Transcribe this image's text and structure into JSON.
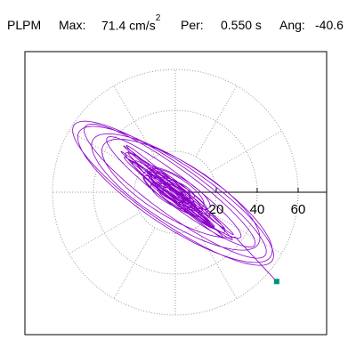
{
  "header": {
    "station": "PLPM",
    "max_label": "Max:",
    "max_value": "71.4 cm/s",
    "max_exp": "2",
    "period_label": "Per:",
    "period_value": "0.550 s",
    "angle_label": "Ang:",
    "angle_value": "-40.6"
  },
  "chart_data": {
    "type": "line",
    "title": "",
    "xlabel": "",
    "ylabel": "",
    "units": "cm/s2",
    "max": 71.4,
    "period_s": 0.55,
    "angle_deg": -40.6,
    "tick_labels": [
      "20",
      "40",
      "60"
    ],
    "tick_values": [
      20,
      40,
      60
    ],
    "polar_grid": {
      "rings": [
        20,
        40,
        60
      ],
      "spokes_deg": [
        0,
        30,
        60,
        90,
        120,
        150,
        180,
        210,
        240,
        270,
        300,
        330
      ]
    },
    "end_point": {
      "x": 49.5,
      "y": -43.6
    },
    "colors": {
      "trace": "#8b00c8",
      "end_marker": "#00937a",
      "grid": "#999999",
      "axis": "#000000"
    }
  }
}
